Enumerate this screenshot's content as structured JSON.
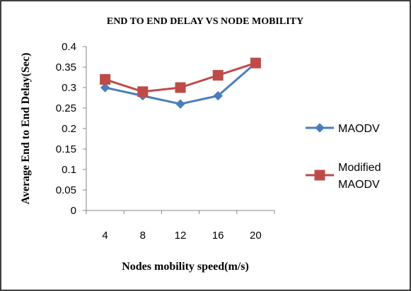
{
  "chart_data": {
    "type": "line",
    "title": "END TO END DELAY VS NODE MOBILITY",
    "xlabel": "Nodes mobility speed(m/s)",
    "ylabel": "Average End to End Delay(Sec)",
    "categories": [
      "4",
      "8",
      "12",
      "16",
      "20"
    ],
    "ylim": [
      0,
      0.4
    ],
    "yticks": [
      "0",
      "0.05",
      "0.1",
      "0.15",
      "0.2",
      "0.25",
      "0.3",
      "0.35",
      "0.4"
    ],
    "grid": false,
    "legend_position": "right",
    "series": [
      {
        "name": "MAODV",
        "values": [
          0.3,
          0.28,
          0.26,
          0.28,
          0.36
        ],
        "color": "#4a7ebb",
        "marker": "diamond"
      },
      {
        "name": "Modified MAODV",
        "legend_lines": [
          "Modified",
          "MAODV"
        ],
        "values": [
          0.32,
          0.29,
          0.3,
          0.33,
          0.36
        ],
        "color": "#be4b48",
        "marker": "square"
      }
    ]
  }
}
